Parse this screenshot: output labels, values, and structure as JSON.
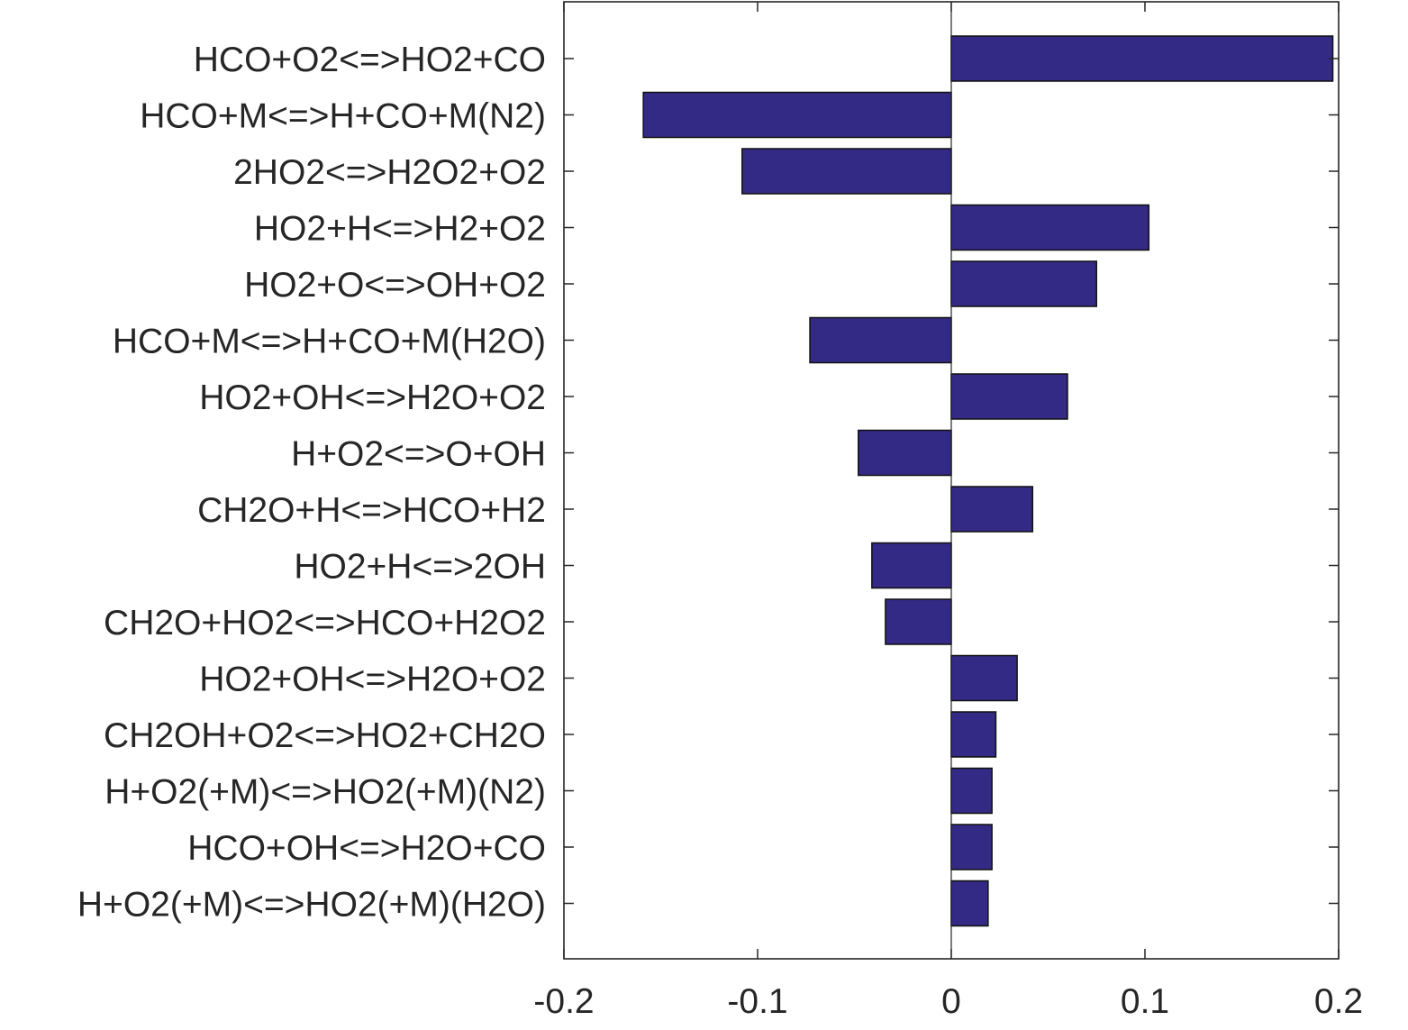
{
  "chart_data": {
    "type": "bar",
    "orientation": "horizontal",
    "title": "",
    "xlabel": "",
    "ylabel": "",
    "xlim": [
      -0.2,
      0.2
    ],
    "xticks": [
      -0.2,
      -0.1,
      0,
      0.1,
      0.2
    ],
    "xtick_labels": [
      "-0.2",
      "-0.1",
      "0",
      "0.1",
      "0.2"
    ],
    "grid": false,
    "bar_color": "#332a85",
    "categories": [
      "HCO+O2<=>HO2+CO",
      "HCO+M<=>H+CO+M(N2)",
      "2HO2<=>H2O2+O2",
      "HO2+H<=>H2+O2",
      "HO2+O<=>OH+O2",
      "HCO+M<=>H+CO+M(H2O)",
      "HO2+OH<=>H2O+O2",
      "H+O2<=>O+OH",
      "CH2O+H<=>HCO+H2",
      "HO2+H<=>2OH",
      "CH2O+HO2<=>HCO+H2O2",
      "HO2+OH<=>H2O+O2",
      "CH2OH+O2<=>HO2+CH2O",
      "H+O2(+M)<=>HO2(+M)(N2)",
      "HCO+OH<=>H2O+CO",
      "H+O2(+M)<=>HO2(+M)(H2O)"
    ],
    "values": [
      0.197,
      -0.159,
      -0.108,
      0.102,
      0.075,
      -0.073,
      0.06,
      -0.048,
      0.042,
      -0.041,
      -0.034,
      0.034,
      0.023,
      0.021,
      0.021,
      0.019
    ]
  }
}
